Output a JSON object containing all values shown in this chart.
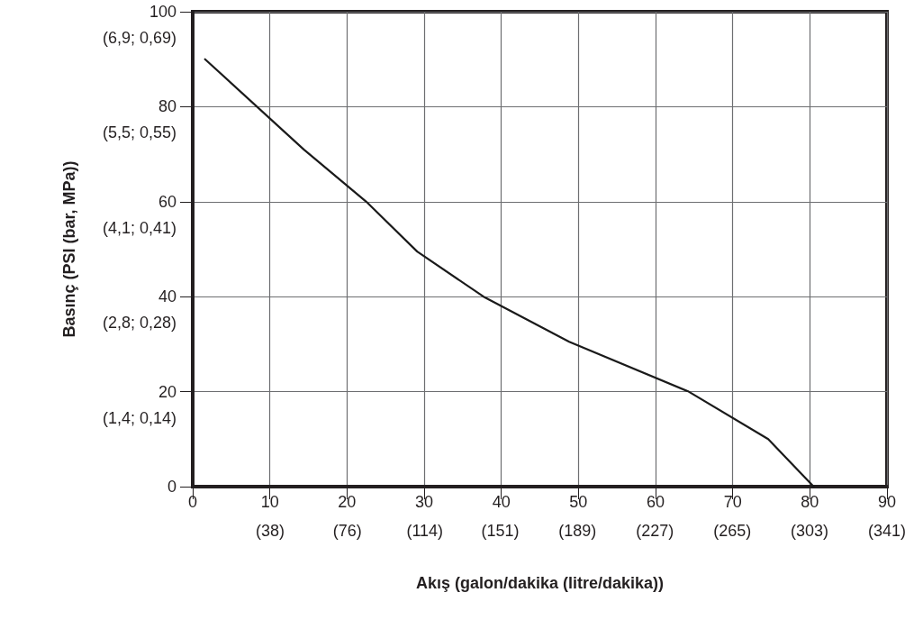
{
  "chart_data": {
    "type": "line",
    "xlabel": "Akış (galon/dakika (litre/dakika))",
    "ylabel": "Basınç (PSI (bar, MPa))",
    "x": [
      1.6,
      14.4,
      22.5,
      29.1,
      37.7,
      48.8,
      64.3,
      74.6,
      80.5
    ],
    "series": [
      {
        "color": "#1a1a1a",
        "values": [
          90,
          71,
          60,
          49.5,
          40,
          30.5,
          20,
          10,
          0
        ]
      }
    ],
    "xlim": [
      0,
      90
    ],
    "ylim": [
      0,
      100
    ],
    "xticks": [
      0,
      10,
      20,
      30,
      40,
      50,
      60,
      70,
      80,
      90
    ],
    "yticks": [
      0,
      20,
      40,
      60,
      80,
      100
    ],
    "x2lim": [
      0,
      341
    ],
    "x2ticks": [
      {
        "value": 38,
        "label": "(38)"
      },
      {
        "value": 76,
        "label": "(76)"
      },
      {
        "value": 114,
        "label": "(114)"
      },
      {
        "value": 151,
        "label": "(151)"
      },
      {
        "value": 189,
        "label": "(189)"
      },
      {
        "value": 227,
        "label": "(227)"
      },
      {
        "value": 265,
        "label": "(265)"
      },
      {
        "value": 303,
        "label": "(303)"
      },
      {
        "value": 341,
        "label": "(341)"
      }
    ],
    "annotations": [
      "(1,4; 0,14)",
      "(2,8; 0,28)",
      "(4,1; 0,41)",
      "(5,5; 0,55)",
      "(6,9; 0,69)"
    ],
    "grid": true,
    "marker": "none",
    "line_style": "solid"
  }
}
